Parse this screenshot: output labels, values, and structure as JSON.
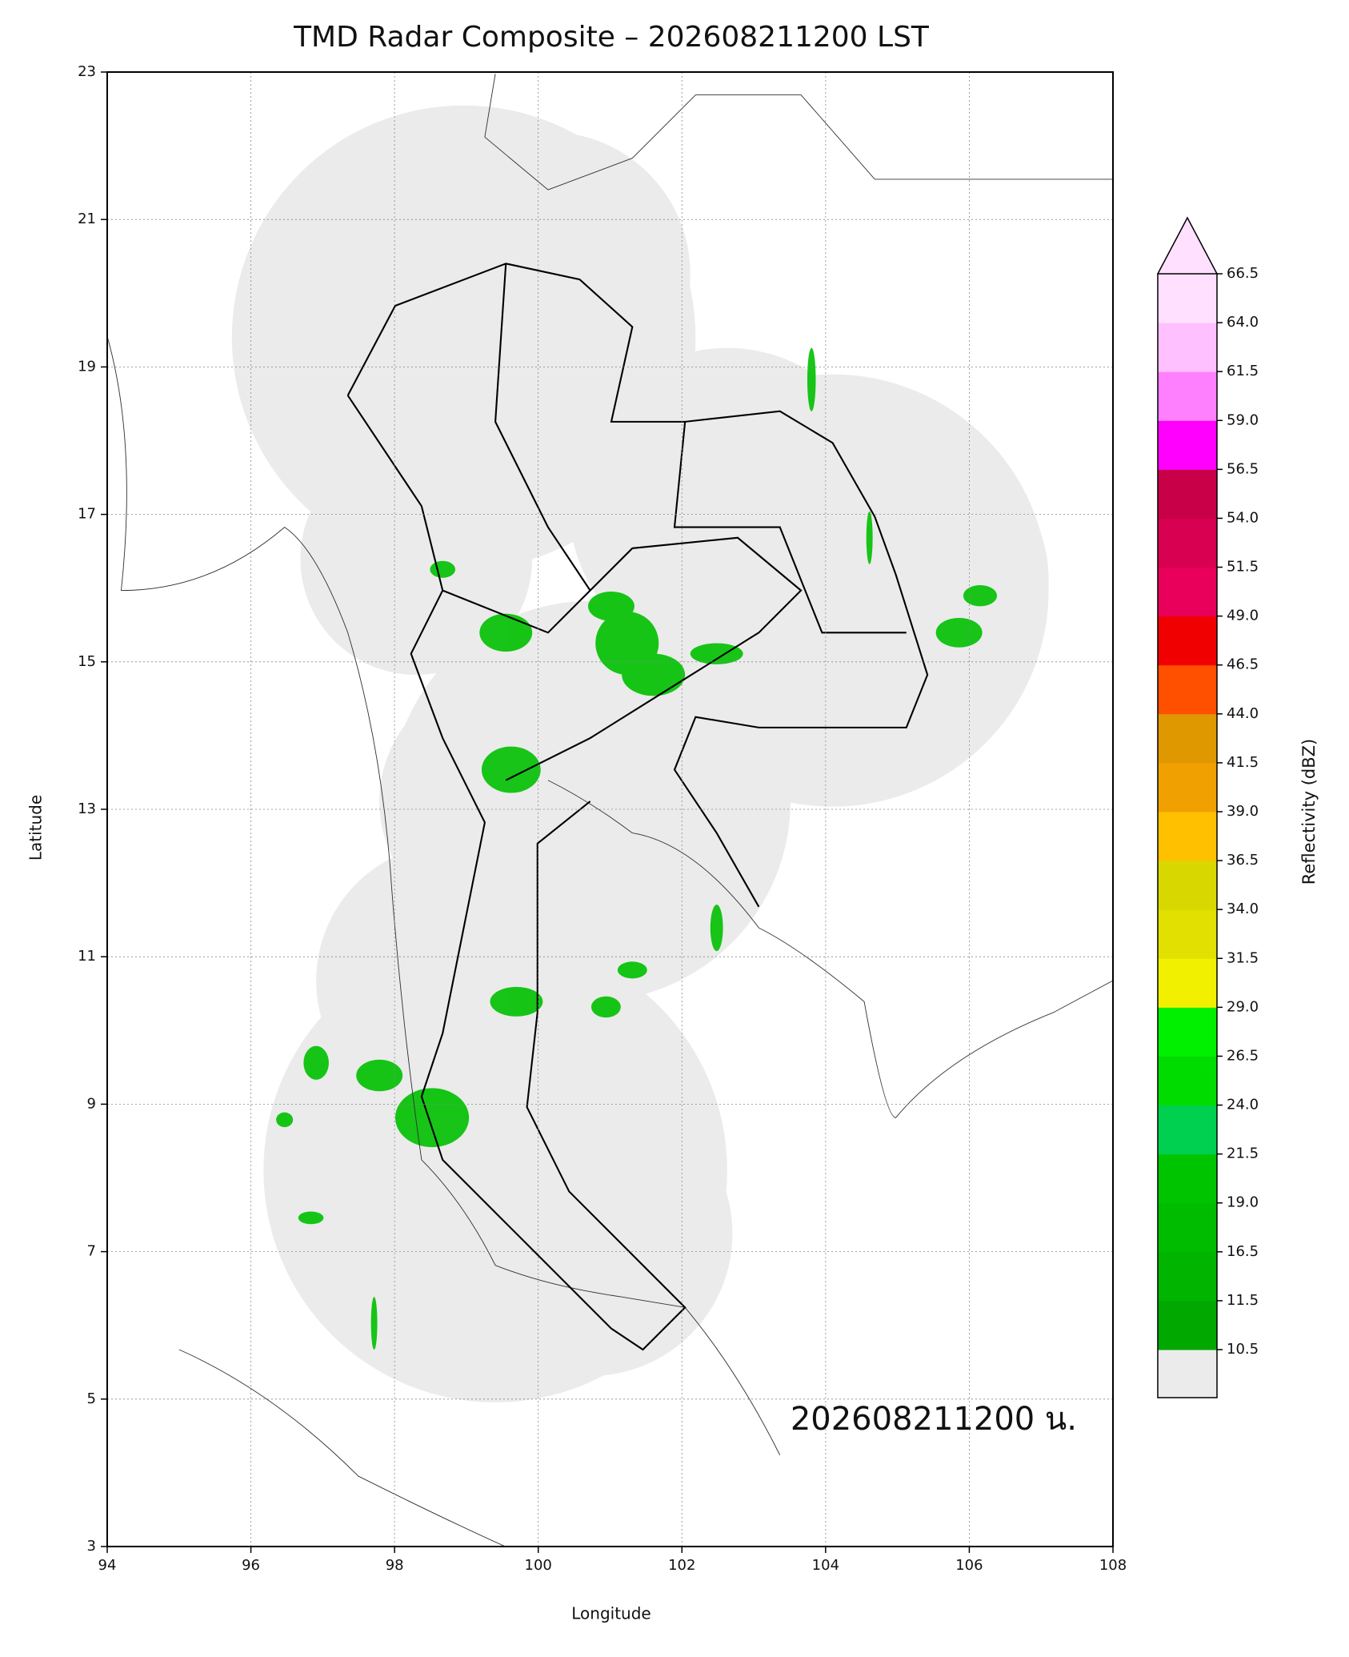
{
  "chart_data": {
    "type": "radar-map",
    "title": "TMD Radar Composite – 202608211200 LST",
    "x_label": "Longitude",
    "y_label": "Latitude",
    "xlim": [
      94,
      108
    ],
    "ylim": [
      3,
      23
    ],
    "xticks": [
      94,
      96,
      98,
      100,
      102,
      104,
      106,
      108
    ],
    "yticks": [
      3,
      5,
      7,
      9,
      11,
      13,
      15,
      17,
      19,
      21,
      23
    ],
    "grid": true,
    "annotation": "202608211200 น.",
    "colorbar": {
      "label": "Reflectivity (dBZ)",
      "levels": [
        10.5,
        11.5,
        16.5,
        {
          "value": 19,
          "label": "19.0"
        },
        21.5,
        {
          "value": 24,
          "label": "24.0"
        },
        26.5,
        {
          "value": 29,
          "label": "29.0"
        },
        31.5,
        {
          "value": 34,
          "label": "34.0"
        },
        36.5,
        {
          "value": 39,
          "label": "39.0"
        },
        41.5,
        {
          "value": 44,
          "label": "44.0"
        },
        46.5,
        {
          "value": 49,
          "label": "49.0"
        },
        51.5,
        {
          "value": 54,
          "label": "54.0"
        },
        56.5,
        {
          "value": 59,
          "label": "59.0"
        },
        61.5,
        {
          "value": 64,
          "label": "64.0"
        },
        66.5
      ],
      "colors": [
        "#00a800",
        "#00b400",
        "#00bc00",
        "#00c400",
        "#00d050",
        "#00dc00",
        "#00f000",
        "#f0f000",
        "#e2e000",
        "#d8d800",
        "#ffc000",
        "#f0a000",
        "#e09800",
        "#ff5000",
        "#f00000",
        "#e8005a",
        "#d80050",
        "#c80048",
        "#ff00ff",
        "#ff80ff",
        "#ffc0ff",
        "#ffe0ff"
      ],
      "under_color": "#ebebeb",
      "over_color": "#ffe0ff"
    }
  }
}
